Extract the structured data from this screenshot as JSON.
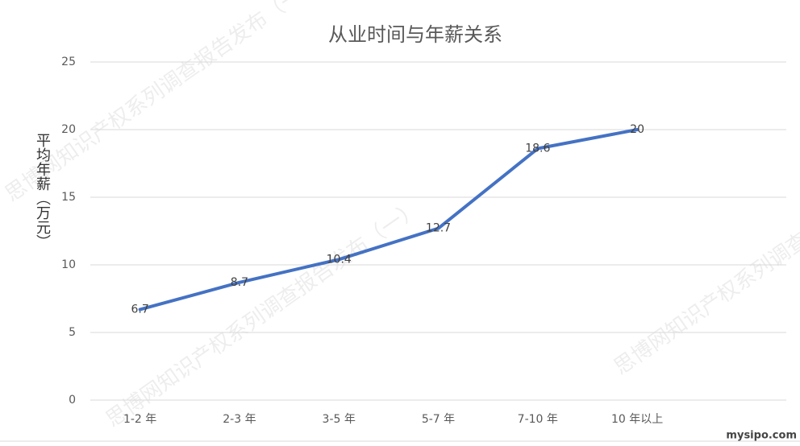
{
  "chart_data": {
    "type": "line",
    "title": "从业时间与年薪关系",
    "y_label": "平均年薪（万元）",
    "categories": [
      "1-2 年",
      "2-3 年",
      "3-5 年",
      "5-7 年",
      "7-10 年",
      "10 年以上",
      null
    ],
    "series": [
      {
        "name": "平均年薪",
        "color": "#4472c4",
        "values": [
          6.7,
          8.7,
          10.4,
          12.7,
          18.6,
          20,
          null
        ]
      }
    ],
    "ylim": [
      0,
      25
    ],
    "yticks": [
      0,
      5,
      10,
      15,
      20,
      25
    ],
    "grid": true,
    "data_labels": true
  },
  "watermark": "思博网知识产权系列调查报告发布（一）",
  "source": "mysipo.com"
}
